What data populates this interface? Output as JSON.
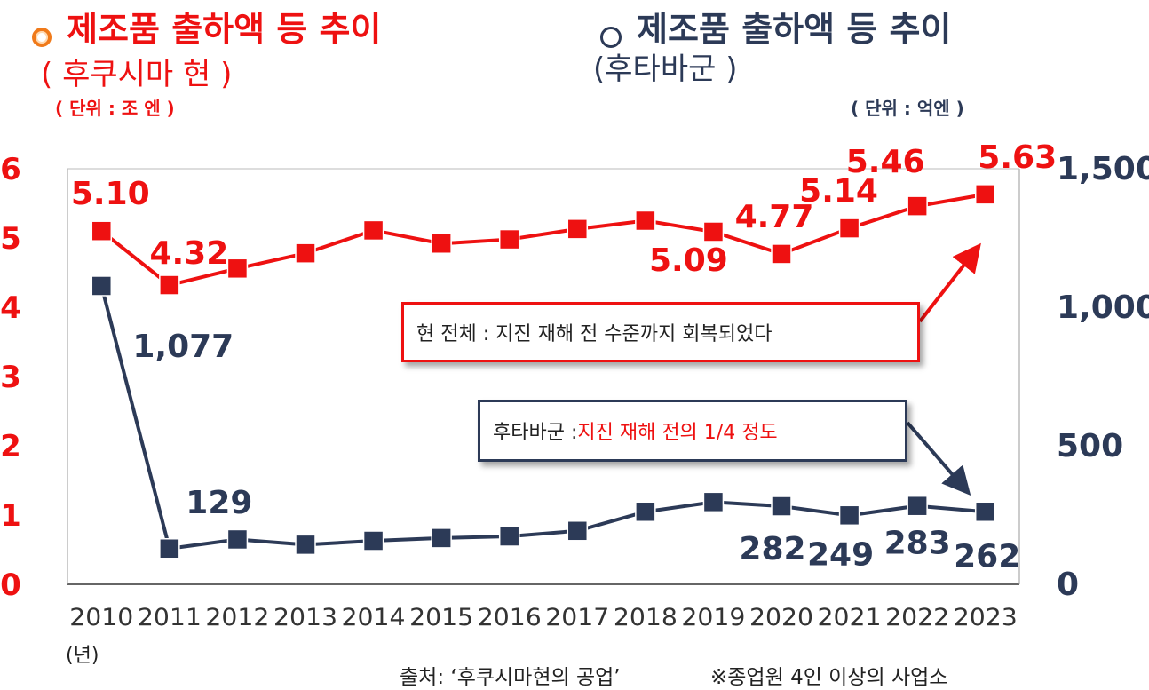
{
  "left_header": {
    "title": "제조품 출하액 등 추이",
    "subtitle": "( 후쿠시마 현 )",
    "unit": "( 단위 : 조 엔 )"
  },
  "right_header": {
    "title": "제조품 출하액 등 추이",
    "subtitle": "(후타바군 )",
    "unit": "( 단위 : 억엔 )"
  },
  "callouts": {
    "prefecture": "현 전체 : 지진 재해 전 수준까지 회복되었다",
    "futaba_prefix": "후타바군 : ",
    "futaba_highlight": "지진 재해 전의 1/4 정도"
  },
  "year_unit": "(년)",
  "source": "출처: ‘후쿠시마현의 공업’",
  "note": "※종업원 4인 이상의 사업소",
  "colors": {
    "prefecture": "#ee1111",
    "futaba": "#2c3a57",
    "orange_marker": "#f07a1a"
  },
  "chart_data": {
    "type": "line",
    "x": [
      "2010",
      "2011",
      "2012",
      "2013",
      "2014",
      "2015",
      "2016",
      "2017",
      "2018",
      "2019",
      "2020",
      "2021",
      "2022",
      "2023"
    ],
    "left_axis": {
      "ylim": [
        0,
        6
      ],
      "ticks": [
        "0",
        "1",
        "2",
        "3",
        "4",
        "5",
        "6"
      ],
      "unit": "조 엔"
    },
    "right_axis": {
      "ylim": [
        0,
        1500
      ],
      "ticks": [
        "0",
        "500",
        "1,000",
        "1,500"
      ],
      "unit": "억엔"
    },
    "series": [
      {
        "name": "후쿠시마 현",
        "axis": "left",
        "color": "#ee1111",
        "values": [
          5.1,
          4.32,
          4.56,
          4.78,
          5.11,
          4.92,
          4.98,
          5.13,
          5.25,
          5.09,
          4.77,
          5.14,
          5.46,
          5.63
        ],
        "labels": [
          {
            "index": 0,
            "text": "5.10"
          },
          {
            "index": 1,
            "text": "4.32"
          },
          {
            "index": 9,
            "text": "5.09"
          },
          {
            "index": 10,
            "text": "4.77"
          },
          {
            "index": 11,
            "text": "5.14"
          },
          {
            "index": 12,
            "text": "5.46"
          },
          {
            "index": 13,
            "text": "5.63"
          }
        ]
      },
      {
        "name": "후타바군",
        "axis": "right",
        "color": "#2c3a57",
        "values": [
          1077,
          129,
          162,
          143,
          157,
          167,
          173,
          193,
          262,
          297,
          282,
          249,
          283,
          262
        ],
        "labels": [
          {
            "index": 0,
            "text": "1,077"
          },
          {
            "index": 1,
            "text": "129"
          },
          {
            "index": 10,
            "text": "282"
          },
          {
            "index": 11,
            "text": "249"
          },
          {
            "index": 12,
            "text": "283"
          },
          {
            "index": 13,
            "text": "262"
          }
        ]
      }
    ]
  }
}
